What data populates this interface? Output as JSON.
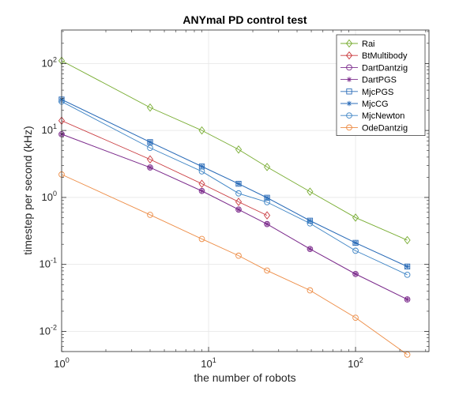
{
  "chart_data": {
    "type": "line",
    "title": "ANYmal PD control test",
    "xlabel": "the number of robots",
    "ylabel": "timestep per second (kHz)",
    "xscale": "log",
    "yscale": "log",
    "xlim": [
      1,
      316
    ],
    "ylim": [
      0.005,
      316
    ],
    "grid": true,
    "legend_position": "top-right",
    "x_ticks": [
      {
        "base": "10",
        "exp": "0",
        "value": 1
      },
      {
        "base": "10",
        "exp": "1",
        "value": 10
      },
      {
        "base": "10",
        "exp": "2",
        "value": 100
      }
    ],
    "y_ticks": [
      {
        "base": "10",
        "exp": "-2",
        "value": 0.01
      },
      {
        "base": "10",
        "exp": "-1",
        "value": 0.1
      },
      {
        "base": "10",
        "exp": "0",
        "value": 1
      },
      {
        "base": "10",
        "exp": "1",
        "value": 10
      },
      {
        "base": "10",
        "exp": "2",
        "value": 100
      }
    ],
    "series": [
      {
        "name": "Rai",
        "color": "#77ac30",
        "marker": "diamond",
        "x": [
          1,
          4,
          9,
          16,
          25,
          49,
          100,
          225
        ],
        "y": [
          110,
          22,
          10,
          5.2,
          2.85,
          1.22,
          0.5,
          0.23
        ]
      },
      {
        "name": "BtMultibody",
        "color": "#c9393d",
        "marker": "diamond",
        "x": [
          1,
          4,
          9,
          16,
          25
        ],
        "y": [
          14,
          3.7,
          1.6,
          0.86,
          0.54
        ]
      },
      {
        "name": "DartDantzig",
        "color": "#7e2f8e",
        "marker": "circle",
        "x": [
          1,
          4,
          9,
          16,
          25,
          49,
          100,
          225
        ],
        "y": [
          8.8,
          2.8,
          1.25,
          0.66,
          0.4,
          0.17,
          0.072,
          0.03
        ]
      },
      {
        "name": "DartPGS",
        "color": "#7e2f8e",
        "marker": "asterisk",
        "x": [
          1,
          4,
          9,
          16,
          25,
          49,
          100,
          225
        ],
        "y": [
          8.8,
          2.8,
          1.25,
          0.66,
          0.4,
          0.17,
          0.072,
          0.03
        ]
      },
      {
        "name": "MjcPGS",
        "color": "#2b6cb8",
        "marker": "square",
        "x": [
          1,
          4,
          9,
          16,
          25,
          49,
          100,
          225
        ],
        "y": [
          29,
          6.7,
          2.9,
          1.6,
          0.99,
          0.45,
          0.21,
          0.093
        ]
      },
      {
        "name": "MjcCG",
        "color": "#2b6cb8",
        "marker": "asterisk",
        "x": [
          1,
          4,
          9,
          16,
          25,
          49,
          100,
          225
        ],
        "y": [
          29,
          6.7,
          2.9,
          1.6,
          0.99,
          0.45,
          0.21,
          0.093
        ]
      },
      {
        "name": "MjcNewton",
        "color": "#3b82c4",
        "marker": "circle",
        "x": [
          1,
          4,
          9,
          16,
          25,
          49,
          100,
          225
        ],
        "y": [
          27,
          5.5,
          2.45,
          1.15,
          0.85,
          0.41,
          0.16,
          0.07
        ]
      },
      {
        "name": "OdeDantzig",
        "color": "#ed8c45",
        "marker": "circle",
        "x": [
          1,
          4,
          9,
          16,
          25,
          49,
          100,
          225
        ],
        "y": [
          2.2,
          0.55,
          0.24,
          0.135,
          0.081,
          0.041,
          0.016,
          0.0045
        ]
      }
    ]
  }
}
